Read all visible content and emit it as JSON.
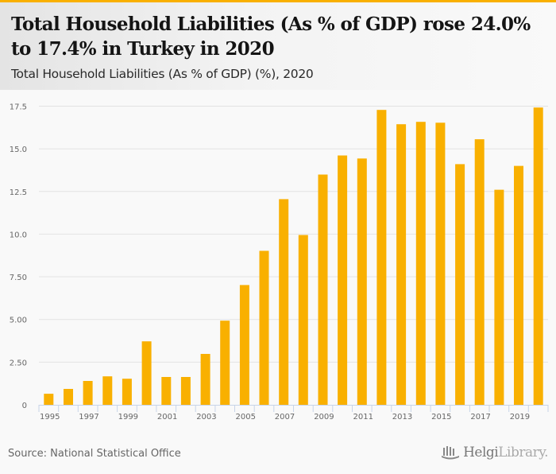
{
  "header": {
    "title": "Total Household Liabilities (As % of GDP) rose 24.0% to 17.4% in Turkey in 2020",
    "subtitle": "Total Household Liabilities (As % of GDP) (%), 2020"
  },
  "footer": {
    "source": "Source: National Statistical Office",
    "logo_bold": "Helgi",
    "logo_light": "Library."
  },
  "colors": {
    "bar": "#f9b000",
    "accent": "#f9b000",
    "grid": "#e3e3e3",
    "axis": "#c8d4e8"
  },
  "chart_data": {
    "type": "bar",
    "title": "Total Household Liabilities (As % of GDP) (%), 2020",
    "xlabel": "",
    "ylabel": "",
    "ylim": [
      0,
      17.5
    ],
    "yticks": [
      0,
      2.5,
      5,
      7.5,
      10,
      12.5,
      15,
      17.5
    ],
    "ytick_labels": [
      "0",
      "2.50",
      "5.00",
      "7.50",
      "10.0",
      "12.5",
      "15.0",
      "17.5"
    ],
    "grid": true,
    "legend": "none",
    "categories": [
      "1995",
      "1996",
      "1997",
      "1998",
      "1999",
      "2000",
      "2001",
      "2002",
      "2003",
      "2004",
      "2005",
      "2006",
      "2007",
      "2008",
      "2009",
      "2010",
      "2011",
      "2012",
      "2013",
      "2014",
      "2015",
      "2016",
      "2017",
      "2018",
      "2019",
      "2020"
    ],
    "xtick_labels": [
      "1995",
      "1997",
      "1999",
      "2001",
      "2003",
      "2005",
      "2007",
      "2009",
      "2011",
      "2013",
      "2015",
      "2017",
      "2019"
    ],
    "series": [
      {
        "name": "Total Household Liabilities (As % of GDP)",
        "values": [
          0.65,
          0.93,
          1.4,
          1.67,
          1.53,
          3.72,
          1.63,
          1.63,
          2.98,
          4.93,
          7.02,
          9.02,
          12.05,
          9.95,
          13.49,
          14.61,
          14.43,
          17.28,
          16.44,
          16.58,
          16.53,
          14.1,
          15.56,
          12.6,
          14.0,
          17.42
        ]
      }
    ]
  }
}
